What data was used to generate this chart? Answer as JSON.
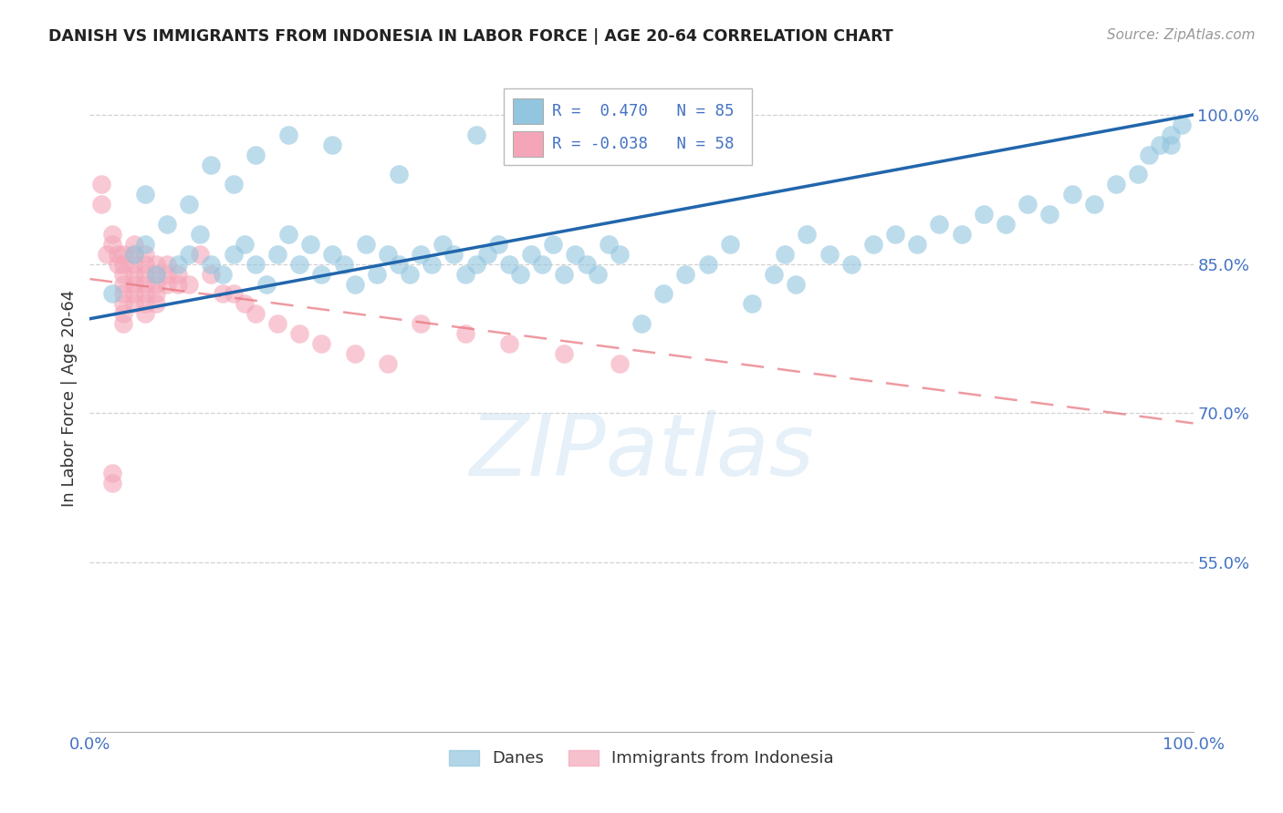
{
  "title": "DANISH VS IMMIGRANTS FROM INDONESIA IN LABOR FORCE | AGE 20-64 CORRELATION CHART",
  "source": "Source: ZipAtlas.com",
  "ylabel": "In Labor Force | Age 20-64",
  "xlim": [
    0.0,
    1.0
  ],
  "ylim": [
    0.38,
    1.05
  ],
  "yticks": [
    0.55,
    0.7,
    0.85,
    1.0
  ],
  "ytick_labels": [
    "55.0%",
    "70.0%",
    "85.0%",
    "100.0%"
  ],
  "legend_danes_R": 0.47,
  "legend_danes_N": 85,
  "legend_immigrants_R": -0.038,
  "legend_immigrants_N": 58,
  "blue_scatter_color": "#92c5de",
  "pink_scatter_color": "#f4a6b8",
  "blue_line_color": "#2166ac",
  "pink_line_color": "#e8707a",
  "watermark": "ZIPatlas",
  "background_color": "#ffffff",
  "grid_color": "#cccccc",
  "title_color": "#222222",
  "axis_label_color": "#4472c4",
  "legend_rect_blue": "#92c5de",
  "legend_rect_pink": "#f4a6b8",
  "danes_x": [
    0.02,
    0.04,
    0.05,
    0.06,
    0.08,
    0.09,
    0.1,
    0.11,
    0.12,
    0.13,
    0.14,
    0.15,
    0.16,
    0.17,
    0.18,
    0.19,
    0.2,
    0.21,
    0.22,
    0.23,
    0.24,
    0.25,
    0.26,
    0.27,
    0.28,
    0.29,
    0.3,
    0.31,
    0.32,
    0.33,
    0.34,
    0.35,
    0.36,
    0.37,
    0.38,
    0.39,
    0.4,
    0.41,
    0.42,
    0.43,
    0.44,
    0.45,
    0.46,
    0.47,
    0.48,
    0.5,
    0.52,
    0.54,
    0.56,
    0.58,
    0.6,
    0.62,
    0.63,
    0.64,
    0.65,
    0.67,
    0.69,
    0.71,
    0.73,
    0.75,
    0.77,
    0.79,
    0.81,
    0.83,
    0.85,
    0.87,
    0.89,
    0.91,
    0.93,
    0.95,
    0.96,
    0.97,
    0.98,
    0.98,
    0.99,
    0.05,
    0.07,
    0.09,
    0.11,
    0.13,
    0.15,
    0.18,
    0.22,
    0.28,
    0.35
  ],
  "danes_y": [
    0.82,
    0.86,
    0.87,
    0.84,
    0.85,
    0.86,
    0.88,
    0.85,
    0.84,
    0.86,
    0.87,
    0.85,
    0.83,
    0.86,
    0.88,
    0.85,
    0.87,
    0.84,
    0.86,
    0.85,
    0.83,
    0.87,
    0.84,
    0.86,
    0.85,
    0.84,
    0.86,
    0.85,
    0.87,
    0.86,
    0.84,
    0.85,
    0.86,
    0.87,
    0.85,
    0.84,
    0.86,
    0.85,
    0.87,
    0.84,
    0.86,
    0.85,
    0.84,
    0.87,
    0.86,
    0.79,
    0.82,
    0.84,
    0.85,
    0.87,
    0.81,
    0.84,
    0.86,
    0.83,
    0.88,
    0.86,
    0.85,
    0.87,
    0.88,
    0.87,
    0.89,
    0.88,
    0.9,
    0.89,
    0.91,
    0.9,
    0.92,
    0.91,
    0.93,
    0.94,
    0.96,
    0.97,
    0.97,
    0.98,
    0.99,
    0.92,
    0.89,
    0.91,
    0.95,
    0.93,
    0.96,
    0.98,
    0.97,
    0.94,
    0.98
  ],
  "imm_x": [
    0.01,
    0.01,
    0.015,
    0.02,
    0.02,
    0.02,
    0.02,
    0.025,
    0.025,
    0.03,
    0.03,
    0.03,
    0.03,
    0.03,
    0.03,
    0.03,
    0.03,
    0.04,
    0.04,
    0.04,
    0.04,
    0.04,
    0.04,
    0.04,
    0.05,
    0.05,
    0.05,
    0.05,
    0.05,
    0.05,
    0.05,
    0.06,
    0.06,
    0.06,
    0.06,
    0.06,
    0.07,
    0.07,
    0.07,
    0.08,
    0.08,
    0.09,
    0.1,
    0.11,
    0.12,
    0.13,
    0.14,
    0.15,
    0.17,
    0.19,
    0.21,
    0.24,
    0.27,
    0.3,
    0.34,
    0.38,
    0.43,
    0.48
  ],
  "imm_y": [
    0.93,
    0.91,
    0.86,
    0.88,
    0.87,
    0.64,
    0.63,
    0.86,
    0.85,
    0.86,
    0.85,
    0.84,
    0.83,
    0.82,
    0.81,
    0.8,
    0.79,
    0.87,
    0.86,
    0.85,
    0.84,
    0.83,
    0.82,
    0.81,
    0.86,
    0.85,
    0.84,
    0.83,
    0.82,
    0.81,
    0.8,
    0.85,
    0.84,
    0.83,
    0.82,
    0.81,
    0.85,
    0.84,
    0.83,
    0.84,
    0.83,
    0.83,
    0.86,
    0.84,
    0.82,
    0.82,
    0.81,
    0.8,
    0.79,
    0.78,
    0.77,
    0.76,
    0.75,
    0.79,
    0.78,
    0.77,
    0.76,
    0.75
  ],
  "danes_line_x": [
    0.0,
    1.0
  ],
  "danes_line_y": [
    0.795,
    1.0
  ],
  "imm_line_x": [
    0.0,
    1.0
  ],
  "imm_line_y": [
    0.835,
    0.69
  ]
}
